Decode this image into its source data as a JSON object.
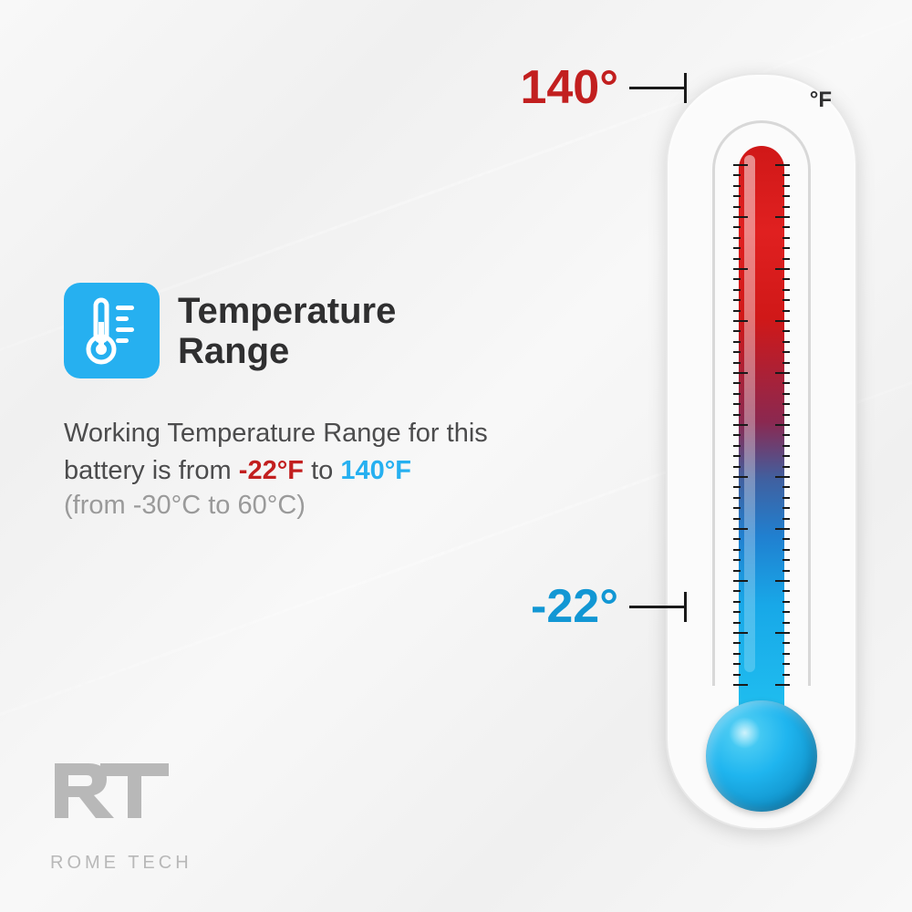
{
  "infographic": {
    "type": "infographic",
    "background_color": "#f5f5f5",
    "title": "Temperature\nRange",
    "title_color": "#2f2f30",
    "title_fontsize": 40,
    "icon_bg_color": "#26b0f0",
    "description_prefix": "Working Temperature Range for this battery is from ",
    "temp_low_f": "-22°F",
    "temp_connector": " to ",
    "temp_high_f": "140°F",
    "celsius_note": "(from -30°C to 60°C)",
    "cold_color": "#c21f1f",
    "hot_color": "#26b0f0",
    "text_color": "#4c4c4d",
    "muted_color": "#9a9a9a"
  },
  "thermometer": {
    "unit_label": "°F",
    "high_value": "140°",
    "low_value": "-22°",
    "high_color": "#c21f1f",
    "low_color": "#1297d4",
    "gradient_top": "#d01818",
    "gradient_bottom": "#20c0f0",
    "bulb_color": "#1fb5ef",
    "body_color": "#fbfbfb",
    "tick_count": 50,
    "major_every": 5
  },
  "logo": {
    "mark": "RT",
    "text": "ROME TECH",
    "color": "#b8b8b8"
  }
}
